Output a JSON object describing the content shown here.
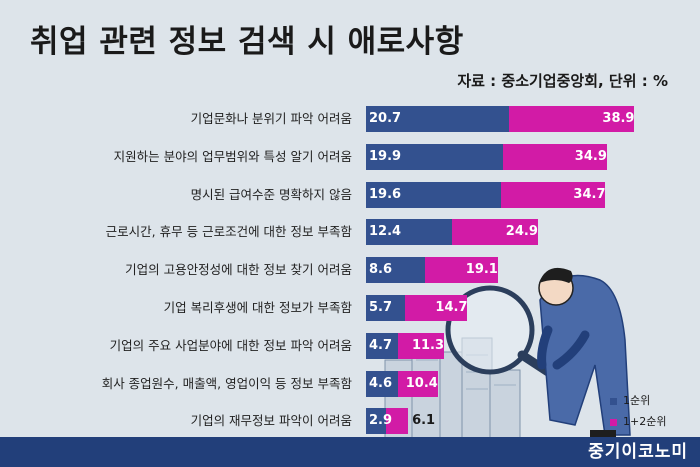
{
  "header": {
    "title": "취업 관련 정보 검색 시 애로사항",
    "source": "자료 : 중소기업중앙회, 단위 : %"
  },
  "chart_data": {
    "type": "bar",
    "orientation": "horizontal",
    "stacking": "overlaid",
    "categories": [
      "기업문화나 분위기 파악 어려움",
      "지원하는 분야의 업무범위와 특성 알기 어려움",
      "명시된 급여수준 명확하지 않음",
      "근로시간, 휴무 등 근로조건에 대한 정보 부족함",
      "기업의 고용안정성에 대한 정보 찾기 어려움",
      "기업 복리후생에 대한 정보가 부족함",
      "기업의 주요 사업분야에 대한 정보 파악 어려움",
      "회사 종업원수, 매출액, 영업이익 등 정보 부족함",
      "기업의 재무정보 파악이 어려움"
    ],
    "series": [
      {
        "name": "1순위",
        "values": [
          20.7,
          19.9,
          19.6,
          12.4,
          8.6,
          5.7,
          4.7,
          4.6,
          2.9
        ],
        "color": "#33518f"
      },
      {
        "name": "1+2순위",
        "values": [
          38.9,
          34.9,
          34.7,
          24.9,
          19.1,
          14.7,
          11.3,
          10.4,
          6.1
        ],
        "color": "#d21ba6"
      }
    ],
    "legend_position": "bottom-right",
    "grid": false
  },
  "background": "#dde4ea",
  "footer": {
    "brand": "중기이코노미",
    "color": "#223f7a"
  }
}
